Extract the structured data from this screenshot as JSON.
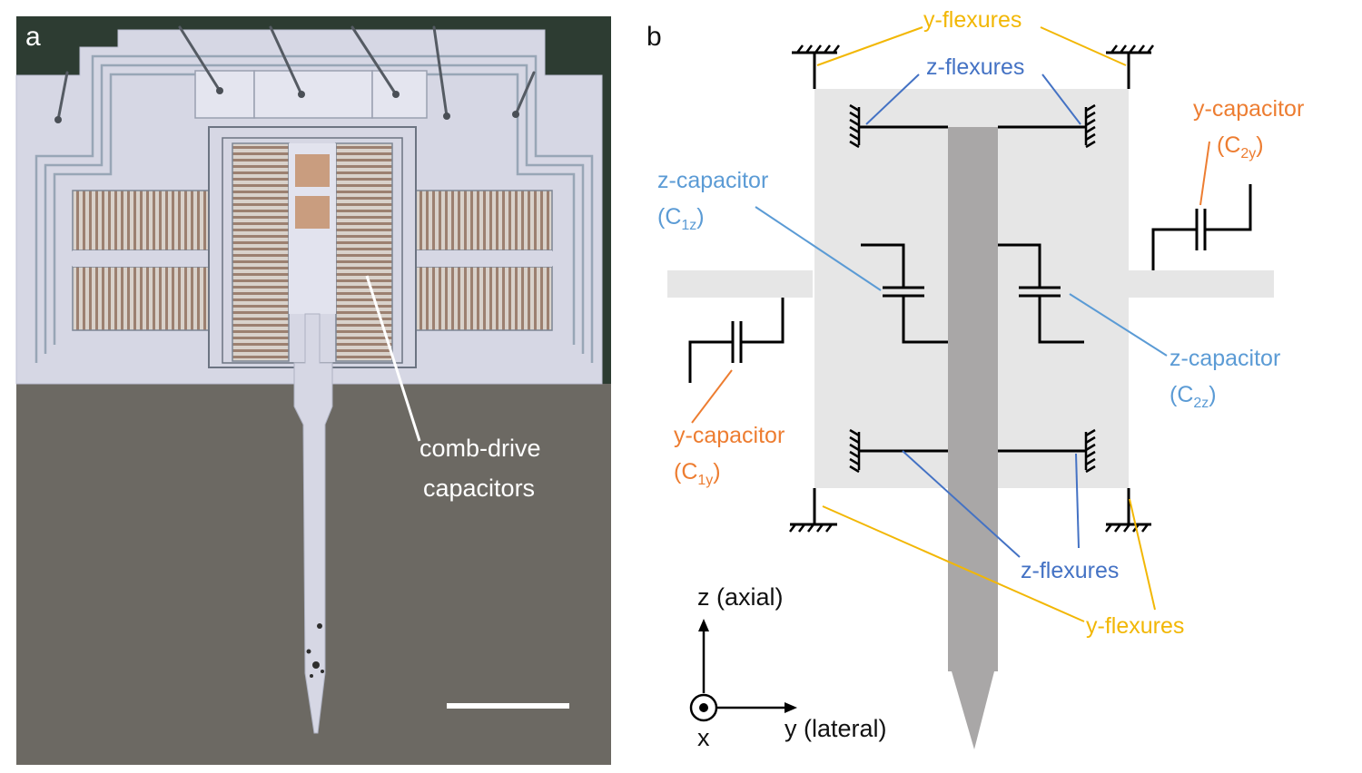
{
  "panel_a": {
    "letter": "a",
    "annotation_line1": "comb-drive",
    "annotation_line2": "capacitors"
  },
  "panel_b": {
    "letter": "b",
    "y_flexures_top": "y-flexures",
    "z_flexures_top": "z-flexures",
    "y_capacitor_right": {
      "name": "y-capacitor",
      "sym_open": "(C",
      "sym_sub": "2y",
      "sym_close": ")"
    },
    "z_capacitor_left": {
      "name": "z-capacitor",
      "sym_open": "(C",
      "sym_sub": "1z",
      "sym_close": ")"
    },
    "z_capacitor_right": {
      "name": "z-capacitor",
      "sym_open": "(C",
      "sym_sub": "2z",
      "sym_close": ")"
    },
    "y_capacitor_left": {
      "name": "y-capacitor",
      "sym_open": "(C",
      "sym_sub": "1y",
      "sym_close": ")"
    },
    "z_flexures_bottom": "z-flexures",
    "y_flexures_bottom": "y-flexures",
    "axis_z": "z (axial)",
    "axis_y": "y (lateral)",
    "axis_x": "x"
  },
  "colors": {
    "flexure_y": "#f2b705",
    "flexure_z": "#4472c4",
    "capacitor_z": "#5b9bd5",
    "capacitor_y": "#ed7d31",
    "frame": "#e6e6e6",
    "probe": "#a9a7a7"
  }
}
